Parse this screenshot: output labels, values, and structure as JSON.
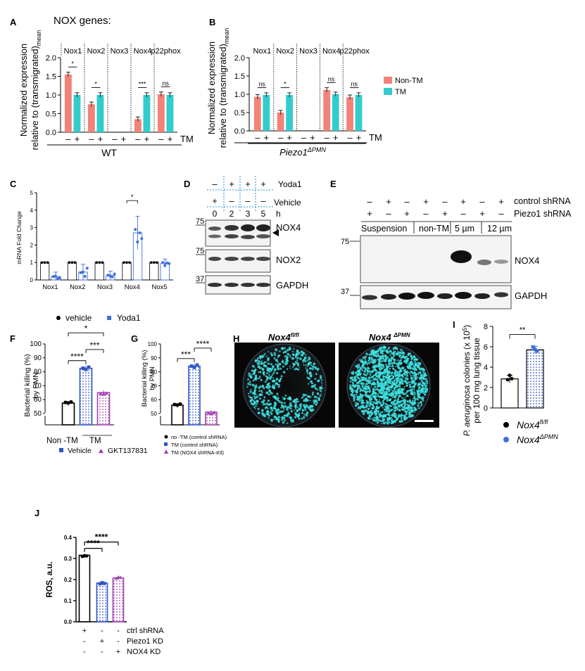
{
  "colors": {
    "nontm": "#f28379",
    "tm": "#33cccc",
    "black": "#000000",
    "blue": "#2f54c8",
    "purple": "#a040b0",
    "dot": "#2f3640",
    "cyan": "#3ee0e0",
    "ibg": "#ffffff",
    "iblue": "#3f6fd8"
  },
  "panels": {
    "A": {
      "letter": "A",
      "header": "NOX genes:",
      "genes": [
        "Nox1",
        "Nox2",
        "Nox3",
        "Nox4",
        "p22phox"
      ],
      "ylabel1": "Normalized expression",
      "ylabel2": "relative to (transmigrated)",
      "ylabel_sub": "mean",
      "yticks": [
        "0.0",
        "0.5",
        "1.0",
        "1.5",
        "2.0"
      ],
      "signs": [
        "–",
        "+"
      ],
      "tm_label": "TM",
      "group": "WT",
      "sig": [
        "*",
        "*",
        "",
        "***",
        "ns"
      ]
    },
    "B": {
      "letter": "B",
      "genes": [
        "Nox1",
        "Nox2",
        "Nox3",
        "Nox4",
        "p22phox"
      ],
      "ylabel1": "Normalized expression",
      "ylabel2": "relative to (transmigrated)",
      "ylabel_sub": "mean",
      "yticks": [
        "0.0",
        "0.5",
        "1.0",
        "1.5",
        "2.0"
      ],
      "signs": [
        "–",
        "+"
      ],
      "tm_label": "TM",
      "group_main": "Piezo1",
      "group_sup": "ΔPMN",
      "legend": [
        "Non-TM",
        "TM"
      ],
      "sig": [
        "ns",
        "*",
        "",
        "ns",
        "ns"
      ]
    },
    "C": {
      "letter": "C",
      "ylabel": "mRNA Fold Change",
      "yticks": [
        "0",
        "1",
        "2",
        "3",
        "4",
        "5"
      ],
      "categories": [
        "Nox1",
        "Nox2",
        "Nox3",
        "Nox4",
        "Nox5"
      ],
      "legend": [
        "vehicle",
        "Yoda1"
      ],
      "sig": "*"
    },
    "D": {
      "letter": "D",
      "row1_label": "Yoda1",
      "row2_label": "Vehicle",
      "row1": [
        "–",
        "+",
        "+",
        "+"
      ],
      "row2": [
        "+",
        "–",
        "–",
        "–"
      ],
      "times": [
        "0",
        "2",
        "3",
        "5"
      ],
      "time_unit": "h",
      "mw": [
        "75",
        "75",
        "37"
      ],
      "bands": [
        "NOX4",
        "NOX2",
        "GAPDH"
      ]
    },
    "E": {
      "letter": "E",
      "row1_label": "control shRNA",
      "row2_label": "Piezo1 shRNA",
      "row1": [
        "–",
        "+",
        "–",
        "+",
        "–",
        "+",
        "–",
        "+"
      ],
      "row2": [
        "+",
        "–",
        "+",
        "–",
        "+",
        "–",
        "+",
        "–"
      ],
      "groups": [
        "Suspension",
        "non-TM",
        "5 µm",
        "12 µm"
      ],
      "mw": [
        "75",
        "37"
      ],
      "bands": [
        "NOX4",
        "GAPDH"
      ]
    },
    "F": {
      "letter": "F",
      "ylabel1": "Bacterial killing (%)",
      "ylabel2": "by PMN",
      "yticks": [
        "50",
        "60",
        "70",
        "80",
        "90",
        "100"
      ],
      "xlabels": [
        "Non -TM",
        "TM"
      ],
      "legend": [
        "Vehicle",
        "GKT137831"
      ],
      "sig": [
        "****",
        "***",
        "*"
      ]
    },
    "G": {
      "letter": "G",
      "ylabel1": "Bacterial killing (%)",
      "ylabel2": "by PMN",
      "yticks": [
        "50",
        "60",
        "70",
        "80",
        "90",
        "100"
      ],
      "legend": [
        "no -TM (control shRNA)",
        "TM (control shRNA)",
        "TM (NOX4 shRNA-#3)"
      ],
      "sig": [
        "***",
        "****"
      ]
    },
    "H": {
      "letter": "H",
      "titles": [
        "Nox4",
        "Nox4 "
      ],
      "sups": [
        "fl/fl",
        "ΔPMN"
      ]
    },
    "I": {
      "letter": "I",
      "ylabel_pre": "P. aeruginosa",
      "ylabel_post": " colonies (x 10",
      "ylabel_exp": "5",
      "ylabel_end": ")",
      "ylabel2": "per 100 mg lung tissue",
      "yticks": [
        "0",
        "2",
        "4",
        "6",
        "8"
      ],
      "legend": [
        "Nox4",
        "Nox4"
      ],
      "legend_sup": [
        "fl/fl",
        "ΔPMN"
      ],
      "sig": "**"
    },
    "J": {
      "letter": "J",
      "ylabel": "ROS, a.u.",
      "yticks": [
        "0.0",
        "0.1",
        "0.2",
        "0.3",
        "0.4"
      ],
      "sig": [
        "****",
        "****"
      ],
      "rows": [
        {
          "label": "ctrl shRNA",
          "signs": [
            "+",
            "-",
            "-"
          ]
        },
        {
          "label": "Piezo1 KD",
          "signs": [
            "-",
            "+",
            "-"
          ]
        },
        {
          "label": "NOX4 KD",
          "signs": [
            "-",
            "-",
            "+"
          ]
        }
      ]
    }
  },
  "chart_data": [
    {
      "panel": "A",
      "type": "bar",
      "categories": [
        "Nox1",
        "Nox2",
        "Nox3",
        "Nox4",
        "p22phox"
      ],
      "ylim": [
        0,
        2
      ],
      "series": [
        {
          "name": "Non-TM",
          "values": [
            1.55,
            0.75,
            0,
            0.35,
            1.02
          ]
        },
        {
          "name": "TM",
          "values": [
            1.0,
            1.0,
            0,
            1.0,
            1.0
          ]
        }
      ]
    },
    {
      "panel": "B",
      "type": "bar",
      "categories": [
        "Nox1",
        "Nox2",
        "Nox3",
        "Nox4",
        "p22phox"
      ],
      "ylim": [
        0,
        2
      ],
      "series": [
        {
          "name": "Non-TM",
          "values": [
            0.93,
            0.5,
            0,
            1.12,
            0.92
          ]
        },
        {
          "name": "TM",
          "values": [
            0.98,
            0.98,
            0,
            1.0,
            0.98
          ]
        }
      ]
    },
    {
      "panel": "C",
      "type": "bar",
      "categories": [
        "Nox1",
        "Nox2",
        "Nox3",
        "Nox4",
        "Nox5"
      ],
      "ylim": [
        0,
        5
      ],
      "series": [
        {
          "name": "vehicle",
          "values": [
            1,
            1,
            1,
            1,
            1
          ]
        },
        {
          "name": "Yoda1",
          "values": [
            0.2,
            0.45,
            0.25,
            2.7,
            0.95
          ]
        }
      ]
    },
    {
      "panel": "F",
      "type": "bar",
      "ylim": [
        50,
        100
      ],
      "categories": [
        "Non -TM",
        "Vehicle TM",
        "GKT137831 TM"
      ],
      "values": [
        57.5,
        82.5,
        65
      ]
    },
    {
      "panel": "G",
      "type": "bar",
      "ylim": [
        50,
        100
      ],
      "categories": [
        "no -TM (control shRNA)",
        "TM (control shRNA)",
        "TM (NOX4 shRNA-#3)"
      ],
      "values": [
        56,
        84,
        51
      ]
    },
    {
      "panel": "I",
      "type": "bar",
      "ylim": [
        0,
        8
      ],
      "categories": [
        "Nox4 fl/fl",
        "Nox4 ΔPMN"
      ],
      "values": [
        2.85,
        5.7
      ]
    },
    {
      "panel": "J",
      "type": "bar",
      "ylim": [
        0,
        0.4
      ],
      "categories": [
        "ctrl shRNA",
        "Piezo1 KD",
        "NOX4 KD"
      ],
      "values": [
        0.315,
        0.183,
        0.207
      ]
    }
  ]
}
